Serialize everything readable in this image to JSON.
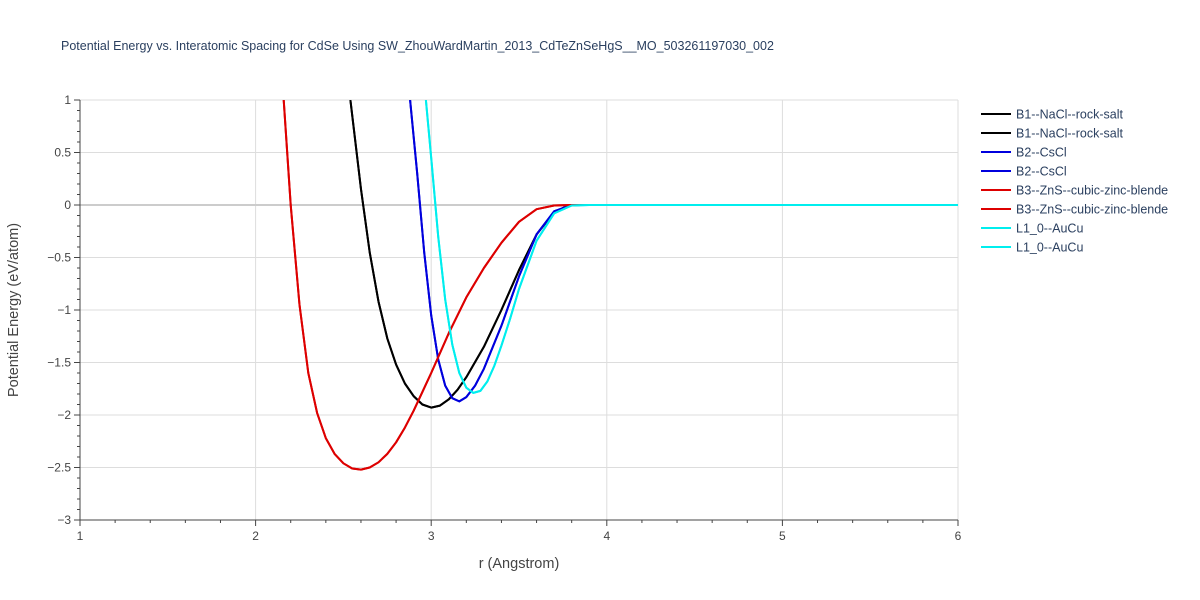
{
  "chart_data": {
    "type": "line",
    "title": "Potential Energy vs. Interatomic Spacing for CdSe Using SW_ZhouWardMartin_2013_CdTeZnSeHgS__MO_503261197030_002",
    "xlabel": "r (Angstrom)",
    "ylabel": "Potential Energy (eV/atom)",
    "xlim": [
      1,
      6
    ],
    "ylim": [
      -3,
      1
    ],
    "xticks": [
      1,
      2,
      3,
      4,
      5,
      6
    ],
    "yticks": [
      -3,
      -2.5,
      -2,
      -1.5,
      -1,
      -0.5,
      0,
      0.5,
      1
    ],
    "ytick_labels": [
      "−3",
      "−2.5",
      "−2",
      "−1.5",
      "−1",
      "−0.5",
      "0",
      "0.5",
      "1"
    ],
    "grid": true,
    "legend_position": "top-right",
    "series": [
      {
        "name": "B1--NaCl--rock-salt",
        "color": "#000000",
        "x": [
          2.54,
          2.6,
          2.65,
          2.7,
          2.75,
          2.8,
          2.85,
          2.9,
          2.95,
          3.0,
          3.05,
          3.1,
          3.15,
          3.2,
          3.3,
          3.4,
          3.5,
          3.6,
          3.7,
          3.78,
          3.85,
          4.0,
          5.0,
          6.0
        ],
        "y": [
          1.0,
          0.15,
          -0.45,
          -0.92,
          -1.27,
          -1.52,
          -1.7,
          -1.82,
          -1.9,
          -1.93,
          -1.91,
          -1.85,
          -1.76,
          -1.64,
          -1.35,
          -1.0,
          -0.62,
          -0.28,
          -0.07,
          -0.005,
          0.0,
          0.0,
          0.0,
          0.0
        ]
      },
      {
        "name": "B1--NaCl--rock-salt",
        "color": "#000000",
        "x": [
          2.54,
          2.6,
          2.65,
          2.7,
          2.75,
          2.8,
          2.85,
          2.9,
          2.95,
          3.0,
          3.05,
          3.1,
          3.15,
          3.2,
          3.3,
          3.4,
          3.5,
          3.6,
          3.7,
          3.78,
          3.85,
          4.0,
          5.0,
          6.0
        ],
        "y": [
          1.0,
          0.15,
          -0.45,
          -0.92,
          -1.27,
          -1.52,
          -1.7,
          -1.82,
          -1.9,
          -1.93,
          -1.91,
          -1.85,
          -1.76,
          -1.64,
          -1.35,
          -1.0,
          -0.62,
          -0.28,
          -0.07,
          -0.005,
          0.0,
          0.0,
          0.0,
          0.0
        ]
      },
      {
        "name": "B2--CsCl",
        "color": "#0000dd",
        "x": [
          2.88,
          2.92,
          2.96,
          3.0,
          3.04,
          3.08,
          3.12,
          3.16,
          3.2,
          3.25,
          3.3,
          3.4,
          3.5,
          3.6,
          3.7,
          3.8,
          3.9,
          4.0,
          5.0,
          6.0
        ],
        "y": [
          1.0,
          0.3,
          -0.45,
          -1.05,
          -1.47,
          -1.72,
          -1.84,
          -1.87,
          -1.83,
          -1.72,
          -1.56,
          -1.15,
          -0.68,
          -0.28,
          -0.06,
          0.0,
          0.0,
          0.0,
          0.0,
          0.0
        ]
      },
      {
        "name": "B2--CsCl",
        "color": "#0000dd",
        "x": [
          2.88,
          2.92,
          2.96,
          3.0,
          3.04,
          3.08,
          3.12,
          3.16,
          3.2,
          3.25,
          3.3,
          3.4,
          3.5,
          3.6,
          3.7,
          3.8,
          3.9,
          4.0,
          5.0,
          6.0
        ],
        "y": [
          1.0,
          0.3,
          -0.45,
          -1.05,
          -1.47,
          -1.72,
          -1.84,
          -1.87,
          -1.83,
          -1.72,
          -1.56,
          -1.15,
          -0.68,
          -0.28,
          -0.06,
          0.0,
          0.0,
          0.0,
          0.0,
          0.0
        ]
      },
      {
        "name": "B3--ZnS--cubic-zinc-blende",
        "color": "#dd0000",
        "x": [
          2.16,
          2.2,
          2.25,
          2.3,
          2.35,
          2.4,
          2.45,
          2.5,
          2.55,
          2.6,
          2.65,
          2.7,
          2.75,
          2.8,
          2.85,
          2.9,
          2.95,
          3.0,
          3.1,
          3.2,
          3.3,
          3.4,
          3.5,
          3.6,
          3.7,
          3.8,
          3.9,
          4.0,
          5.0,
          6.0
        ],
        "y": [
          1.0,
          0.0,
          -0.95,
          -1.6,
          -1.98,
          -2.22,
          -2.37,
          -2.46,
          -2.51,
          -2.52,
          -2.5,
          -2.45,
          -2.37,
          -2.26,
          -2.12,
          -1.96,
          -1.78,
          -1.6,
          -1.22,
          -0.88,
          -0.6,
          -0.36,
          -0.16,
          -0.04,
          -0.005,
          0.0,
          0.0,
          0.0,
          0.0,
          0.0
        ]
      },
      {
        "name": "B3--ZnS--cubic-zinc-blende",
        "color": "#dd0000",
        "x": [
          2.16,
          2.2,
          2.25,
          2.3,
          2.35,
          2.4,
          2.45,
          2.5,
          2.55,
          2.6,
          2.65,
          2.7,
          2.75,
          2.8,
          2.85,
          2.9,
          2.95,
          3.0,
          3.1,
          3.2,
          3.3,
          3.4,
          3.5,
          3.6,
          3.7,
          3.8,
          3.9,
          4.0,
          5.0,
          6.0
        ],
        "y": [
          1.0,
          0.0,
          -0.95,
          -1.6,
          -1.98,
          -2.22,
          -2.37,
          -2.46,
          -2.51,
          -2.52,
          -2.5,
          -2.45,
          -2.37,
          -2.26,
          -2.12,
          -1.96,
          -1.78,
          -1.6,
          -1.22,
          -0.88,
          -0.6,
          -0.36,
          -0.16,
          -0.04,
          -0.005,
          0.0,
          0.0,
          0.0,
          0.0,
          0.0
        ]
      },
      {
        "name": "L1_0--AuCu",
        "color": "#00eeee",
        "x": [
          2.97,
          3.0,
          3.04,
          3.08,
          3.12,
          3.16,
          3.2,
          3.24,
          3.28,
          3.32,
          3.36,
          3.4,
          3.45,
          3.5,
          3.6,
          3.7,
          3.8,
          3.9,
          4.0,
          5.0,
          6.0
        ],
        "y": [
          1.0,
          0.45,
          -0.3,
          -0.9,
          -1.33,
          -1.6,
          -1.74,
          -1.79,
          -1.77,
          -1.68,
          -1.53,
          -1.34,
          -1.08,
          -0.8,
          -0.34,
          -0.08,
          -0.005,
          0.0,
          0.0,
          0.0,
          0.0
        ]
      },
      {
        "name": "L1_0--AuCu",
        "color": "#00eeee",
        "x": [
          2.97,
          3.0,
          3.04,
          3.08,
          3.12,
          3.16,
          3.2,
          3.24,
          3.28,
          3.32,
          3.36,
          3.4,
          3.45,
          3.5,
          3.6,
          3.7,
          3.8,
          3.9,
          4.0,
          5.0,
          6.0
        ],
        "y": [
          1.0,
          0.45,
          -0.3,
          -0.9,
          -1.33,
          -1.6,
          -1.74,
          -1.79,
          -1.77,
          -1.68,
          -1.53,
          -1.34,
          -1.08,
          -0.8,
          -0.34,
          -0.08,
          -0.005,
          0.0,
          0.0,
          0.0,
          0.0
        ]
      }
    ]
  }
}
